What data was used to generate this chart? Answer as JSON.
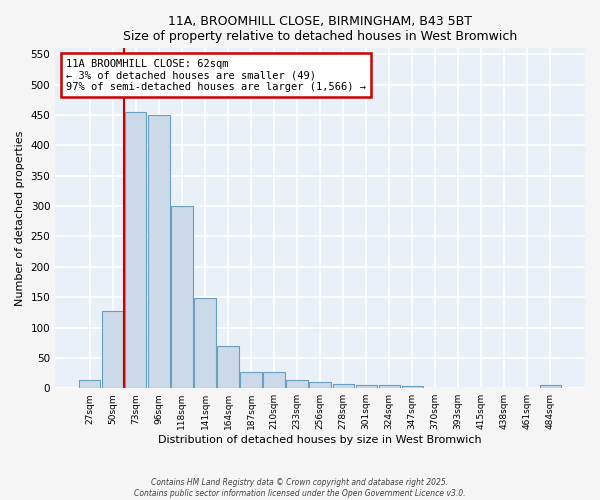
{
  "title": "11A, BROOMHILL CLOSE, BIRMINGHAM, B43 5BT",
  "subtitle": "Size of property relative to detached houses in West Bromwich",
  "xlabel": "Distribution of detached houses by size in West Bromwich",
  "ylabel": "Number of detached properties",
  "bar_color": "#ccd9e8",
  "bar_edge_color": "#6a9fc0",
  "plot_bg_color": "#eaf0f8",
  "fig_bg_color": "#f5f5f5",
  "grid_color": "#ffffff",
  "bins": [
    "27sqm",
    "50sqm",
    "73sqm",
    "96sqm",
    "118sqm",
    "141sqm",
    "164sqm",
    "187sqm",
    "210sqm",
    "233sqm",
    "256sqm",
    "278sqm",
    "301sqm",
    "324sqm",
    "347sqm",
    "370sqm",
    "393sqm",
    "415sqm",
    "438sqm",
    "461sqm",
    "484sqm"
  ],
  "values": [
    13,
    127,
    455,
    450,
    300,
    148,
    70,
    27,
    27,
    13,
    10,
    7,
    6,
    5,
    4,
    1,
    1,
    1,
    1,
    1,
    6
  ],
  "ylim": [
    0,
    560
  ],
  "yticks": [
    0,
    50,
    100,
    150,
    200,
    250,
    300,
    350,
    400,
    450,
    500,
    550
  ],
  "red_line_x": 1.5,
  "annotation_text": "11A BROOMHILL CLOSE: 62sqm\n← 3% of detached houses are smaller (49)\n97% of semi-detached houses are larger (1,566) →",
  "annotation_box_facecolor": "#ffffff",
  "annotation_border_color": "#cc0000",
  "footer_line1": "Contains HM Land Registry data © Crown copyright and database right 2025.",
  "footer_line2": "Contains public sector information licensed under the Open Government Licence v3.0."
}
